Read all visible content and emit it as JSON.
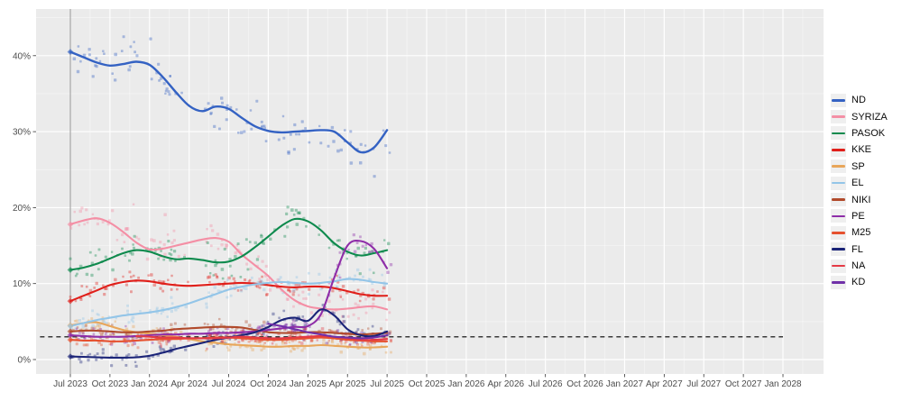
{
  "chart_data": {
    "type": "line",
    "title": "",
    "description": "Greek national election opinion polls, scatter of individual polls with smoothed trend lines per party, 3% electoral threshold shown as dashed line",
    "x_unit": "months since Jul 2023 (series values are monthly)",
    "x_tick_months": [
      0,
      3,
      6,
      9,
      12,
      15,
      18,
      21,
      24,
      27,
      30,
      33,
      36,
      39,
      42,
      45,
      48,
      51,
      54
    ],
    "x_tick_labels": [
      "Jul 2023",
      "Oct 2023",
      "Jan 2024",
      "Apr 2024",
      "Jul 2024",
      "Oct 2024",
      "Jan 2025",
      "Apr 2025",
      "Jul 2025",
      "Oct 2025",
      "Jan 2026",
      "Apr 2026",
      "Jul 2026",
      "Oct 2026",
      "Jan 2027",
      "Apr 2027",
      "Jul 2027",
      "Oct 2027",
      "Jan 2028"
    ],
    "y_tick_values": [
      0,
      10,
      20,
      30,
      40
    ],
    "y_tick_labels": [
      "0%",
      "10%",
      "20%",
      "30%",
      "40%"
    ],
    "ylim": [
      -1.9,
      46.2
    ],
    "grid": "on",
    "legend_position": "right",
    "panel_bg": "#EBEBEB",
    "grid_major_color": "#FFFFFF",
    "axis_text_color": "#4d4d4d",
    "election_marker_month": 0,
    "election_marker_color": "#A6A6A6",
    "threshold": {
      "value": 3,
      "color": "#3A3A3A",
      "style": "dashed",
      "start_month": -2.3,
      "end_month": 54
    },
    "scatter": {
      "polls": 105,
      "seed": 42,
      "point_opacity": 0.38,
      "max_month": 24.2
    },
    "series": [
      {
        "name": "ND",
        "color": "#3462C3",
        "noise_sd": 1.6,
        "start_month": 0,
        "election_diamond": true,
        "values": [
          40.5,
          39.8,
          39.1,
          38.7,
          38.9,
          39.2,
          38.8,
          37.2,
          35.2,
          33.4,
          32.7,
          33.3,
          33.0,
          31.8,
          30.7,
          30.1,
          29.9,
          30.0,
          30.1,
          30.2,
          30.0,
          28.6,
          27.3,
          27.9,
          30.2
        ]
      },
      {
        "name": "SYRIZA",
        "color": "#F48FA5",
        "noise_sd": 1.1,
        "start_month": 0,
        "election_diamond": true,
        "values": [
          17.8,
          18.3,
          18.6,
          18.0,
          16.8,
          15.4,
          14.5,
          14.6,
          15.0,
          15.4,
          15.8,
          16.0,
          15.5,
          13.8,
          12.4,
          11.0,
          9.2,
          7.8,
          7.0,
          6.7,
          6.6,
          6.7,
          6.9,
          7.0,
          6.6
        ]
      },
      {
        "name": "PASOK",
        "color": "#0E8A4D",
        "noise_sd": 1.1,
        "start_month": 0,
        "election_diamond": true,
        "values": [
          11.8,
          12.1,
          12.6,
          13.3,
          14.0,
          14.4,
          14.2,
          13.6,
          13.2,
          13.3,
          13.1,
          12.8,
          12.9,
          13.6,
          14.8,
          16.2,
          17.6,
          18.5,
          18.2,
          17.0,
          15.3,
          14.2,
          13.7,
          14.0,
          14.4
        ]
      },
      {
        "name": "KKE",
        "color": "#E01F1A",
        "noise_sd": 0.65,
        "start_month": 0,
        "election_diamond": true,
        "values": [
          7.7,
          8.4,
          9.1,
          9.8,
          10.2,
          10.4,
          10.3,
          10.0,
          9.8,
          9.7,
          9.8,
          9.9,
          10.0,
          10.1,
          10.0,
          9.8,
          9.6,
          9.5,
          9.6,
          9.6,
          9.4,
          9.0,
          8.6,
          8.4,
          8.4
        ]
      },
      {
        "name": "SP",
        "color": "#E8A65A",
        "noise_sd": 0.5,
        "start_month": 0,
        "election_diamond": true,
        "values": [
          4.5,
          4.8,
          4.9,
          4.4,
          3.9,
          3.6,
          3.4,
          3.2,
          3.0,
          2.7,
          2.4,
          2.2,
          2.0,
          1.9,
          1.8,
          1.7,
          1.7,
          1.8,
          1.8,
          1.9,
          1.8,
          1.7,
          1.6,
          1.6,
          1.7
        ]
      },
      {
        "name": "EL",
        "color": "#93C5E8",
        "noise_sd": 0.65,
        "start_month": 0,
        "election_diamond": true,
        "values": [
          4.4,
          4.8,
          5.2,
          5.5,
          5.8,
          6.0,
          6.2,
          6.5,
          6.9,
          7.4,
          8.0,
          8.6,
          9.2,
          9.6,
          9.9,
          10.1,
          10.2,
          10.1,
          10.0,
          10.1,
          10.3,
          10.6,
          10.5,
          10.2,
          10.0
        ]
      },
      {
        "name": "NIKI",
        "color": "#B14A2B",
        "noise_sd": 0.5,
        "start_month": 0,
        "election_diamond": true,
        "values": [
          3.7,
          3.8,
          3.8,
          3.7,
          3.6,
          3.6,
          3.7,
          3.8,
          4.0,
          4.1,
          4.2,
          4.3,
          4.3,
          4.2,
          3.9,
          3.6,
          3.5,
          3.5,
          3.6,
          3.6,
          3.5,
          3.4,
          3.3,
          3.4,
          3.5
        ]
      },
      {
        "name": "PE",
        "color": "#8E2DA8",
        "noise_sd": 0.6,
        "start_month": 0,
        "election_diamond": true,
        "values": [
          3.2,
          3.1,
          3.0,
          3.0,
          3.0,
          3.1,
          3.2,
          3.3,
          3.3,
          3.4,
          3.4,
          3.5,
          3.5,
          3.6,
          3.7,
          3.9,
          4.1,
          4.3,
          4.4,
          6.0,
          10.8,
          15.0,
          15.6,
          14.6,
          12.0
        ]
      },
      {
        "name": "M25",
        "color": "#E6512F",
        "noise_sd": 0.45,
        "start_month": 0,
        "election_diamond": true,
        "values": [
          2.6,
          2.5,
          2.5,
          2.4,
          2.4,
          2.5,
          2.6,
          2.7,
          2.7,
          2.8,
          2.8,
          2.9,
          2.9,
          2.8,
          2.7,
          2.6,
          2.6,
          2.7,
          2.8,
          2.9,
          2.8,
          2.6,
          2.5,
          2.4,
          2.4
        ]
      },
      {
        "name": "FL",
        "color": "#1B2478",
        "noise_sd": 0.5,
        "start_month": 0,
        "election_diamond": true,
        "values": [
          0.4,
          0.35,
          0.3,
          0.25,
          0.25,
          0.3,
          0.5,
          0.9,
          1.4,
          1.8,
          2.2,
          2.6,
          2.9,
          3.2,
          3.6,
          4.3,
          5.2,
          5.5,
          5.1,
          6.6,
          5.8,
          4.0,
          3.2,
          3.1,
          3.7
        ]
      },
      {
        "name": "NA",
        "color": "#E43A45",
        "noise_sd": 0.45,
        "start_month": 5,
        "election_diamond": false,
        "values": [
          3.1,
          3.0,
          2.9,
          2.9,
          2.8,
          2.8,
          2.8,
          2.9,
          3.0,
          2.9,
          2.8,
          2.8,
          2.9,
          3.0,
          3.1,
          3.0,
          2.8,
          2.6,
          2.6,
          2.7
        ]
      },
      {
        "name": "KD",
        "color": "#7030A8",
        "noise_sd": 0.5,
        "start_month": 15,
        "election_diamond": false,
        "values": [
          4.7,
          4.4,
          4.0,
          3.6,
          3.3,
          3.0,
          2.9,
          2.8,
          2.9,
          3.2
        ]
      }
    ]
  }
}
